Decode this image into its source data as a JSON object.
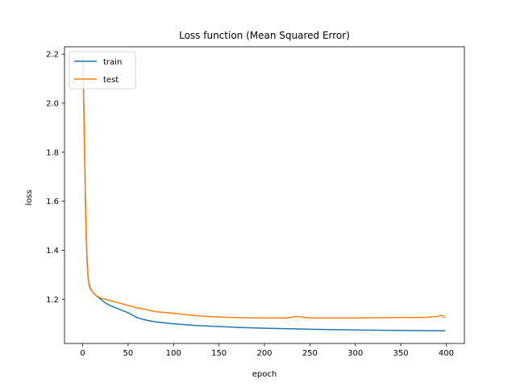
{
  "chart_data": {
    "type": "line",
    "title": "Loss function (Mean Squared Error)",
    "xlabel": "epoch",
    "ylabel": "loss",
    "xlim": [
      -20,
      420
    ],
    "ylim": [
      1.02,
      2.23
    ],
    "xticks": [
      0,
      50,
      100,
      150,
      200,
      250,
      300,
      350,
      400
    ],
    "yticks": [
      1.2,
      1.4,
      1.6,
      1.8,
      2.0,
      2.2
    ],
    "ytick_labels": [
      "1.2",
      "1.4",
      "1.6",
      "1.8",
      "2.0",
      "2.2"
    ],
    "grid": false,
    "legend_position": "top-left",
    "series": [
      {
        "name": "train",
        "color": "#1f77b4",
        "x": [
          0,
          1,
          2,
          3,
          4,
          5,
          6,
          7,
          8,
          10,
          12,
          15,
          20,
          25,
          30,
          40,
          50,
          55,
          60,
          70,
          80,
          100,
          125,
          150,
          175,
          200,
          250,
          300,
          350,
          399
        ],
        "y": [
          2.18,
          2.05,
          1.85,
          1.62,
          1.45,
          1.35,
          1.29,
          1.265,
          1.25,
          1.235,
          1.225,
          1.215,
          1.2,
          1.185,
          1.175,
          1.16,
          1.145,
          1.135,
          1.125,
          1.115,
          1.108,
          1.1,
          1.093,
          1.089,
          1.085,
          1.082,
          1.078,
          1.075,
          1.073,
          1.072
        ]
      },
      {
        "name": "test",
        "color": "#ff7f0e",
        "x": [
          0,
          1,
          2,
          3,
          4,
          5,
          6,
          7,
          8,
          10,
          12,
          15,
          20,
          25,
          30,
          40,
          50,
          60,
          70,
          80,
          100,
          125,
          150,
          175,
          200,
          225,
          235,
          250,
          275,
          300,
          325,
          350,
          375,
          390,
          395,
          399
        ],
        "y": [
          2.17,
          2.02,
          1.82,
          1.6,
          1.44,
          1.34,
          1.285,
          1.26,
          1.245,
          1.235,
          1.225,
          1.215,
          1.205,
          1.2,
          1.195,
          1.185,
          1.175,
          1.165,
          1.158,
          1.15,
          1.143,
          1.133,
          1.128,
          1.125,
          1.124,
          1.124,
          1.13,
          1.124,
          1.124,
          1.124,
          1.125,
          1.126,
          1.126,
          1.13,
          1.135,
          1.125
        ]
      }
    ]
  }
}
